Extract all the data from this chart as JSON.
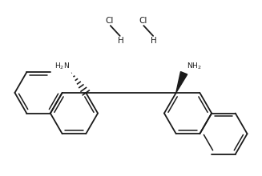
{
  "background_color": "#ffffff",
  "line_color": "#1a1a1a",
  "line_width": 1.3,
  "figsize": [
    3.27,
    2.2
  ],
  "dpi": 100,
  "r": 0.3,
  "xlim": [
    -1.65,
    1.65
  ],
  "ylim": [
    -1.1,
    0.9
  ]
}
